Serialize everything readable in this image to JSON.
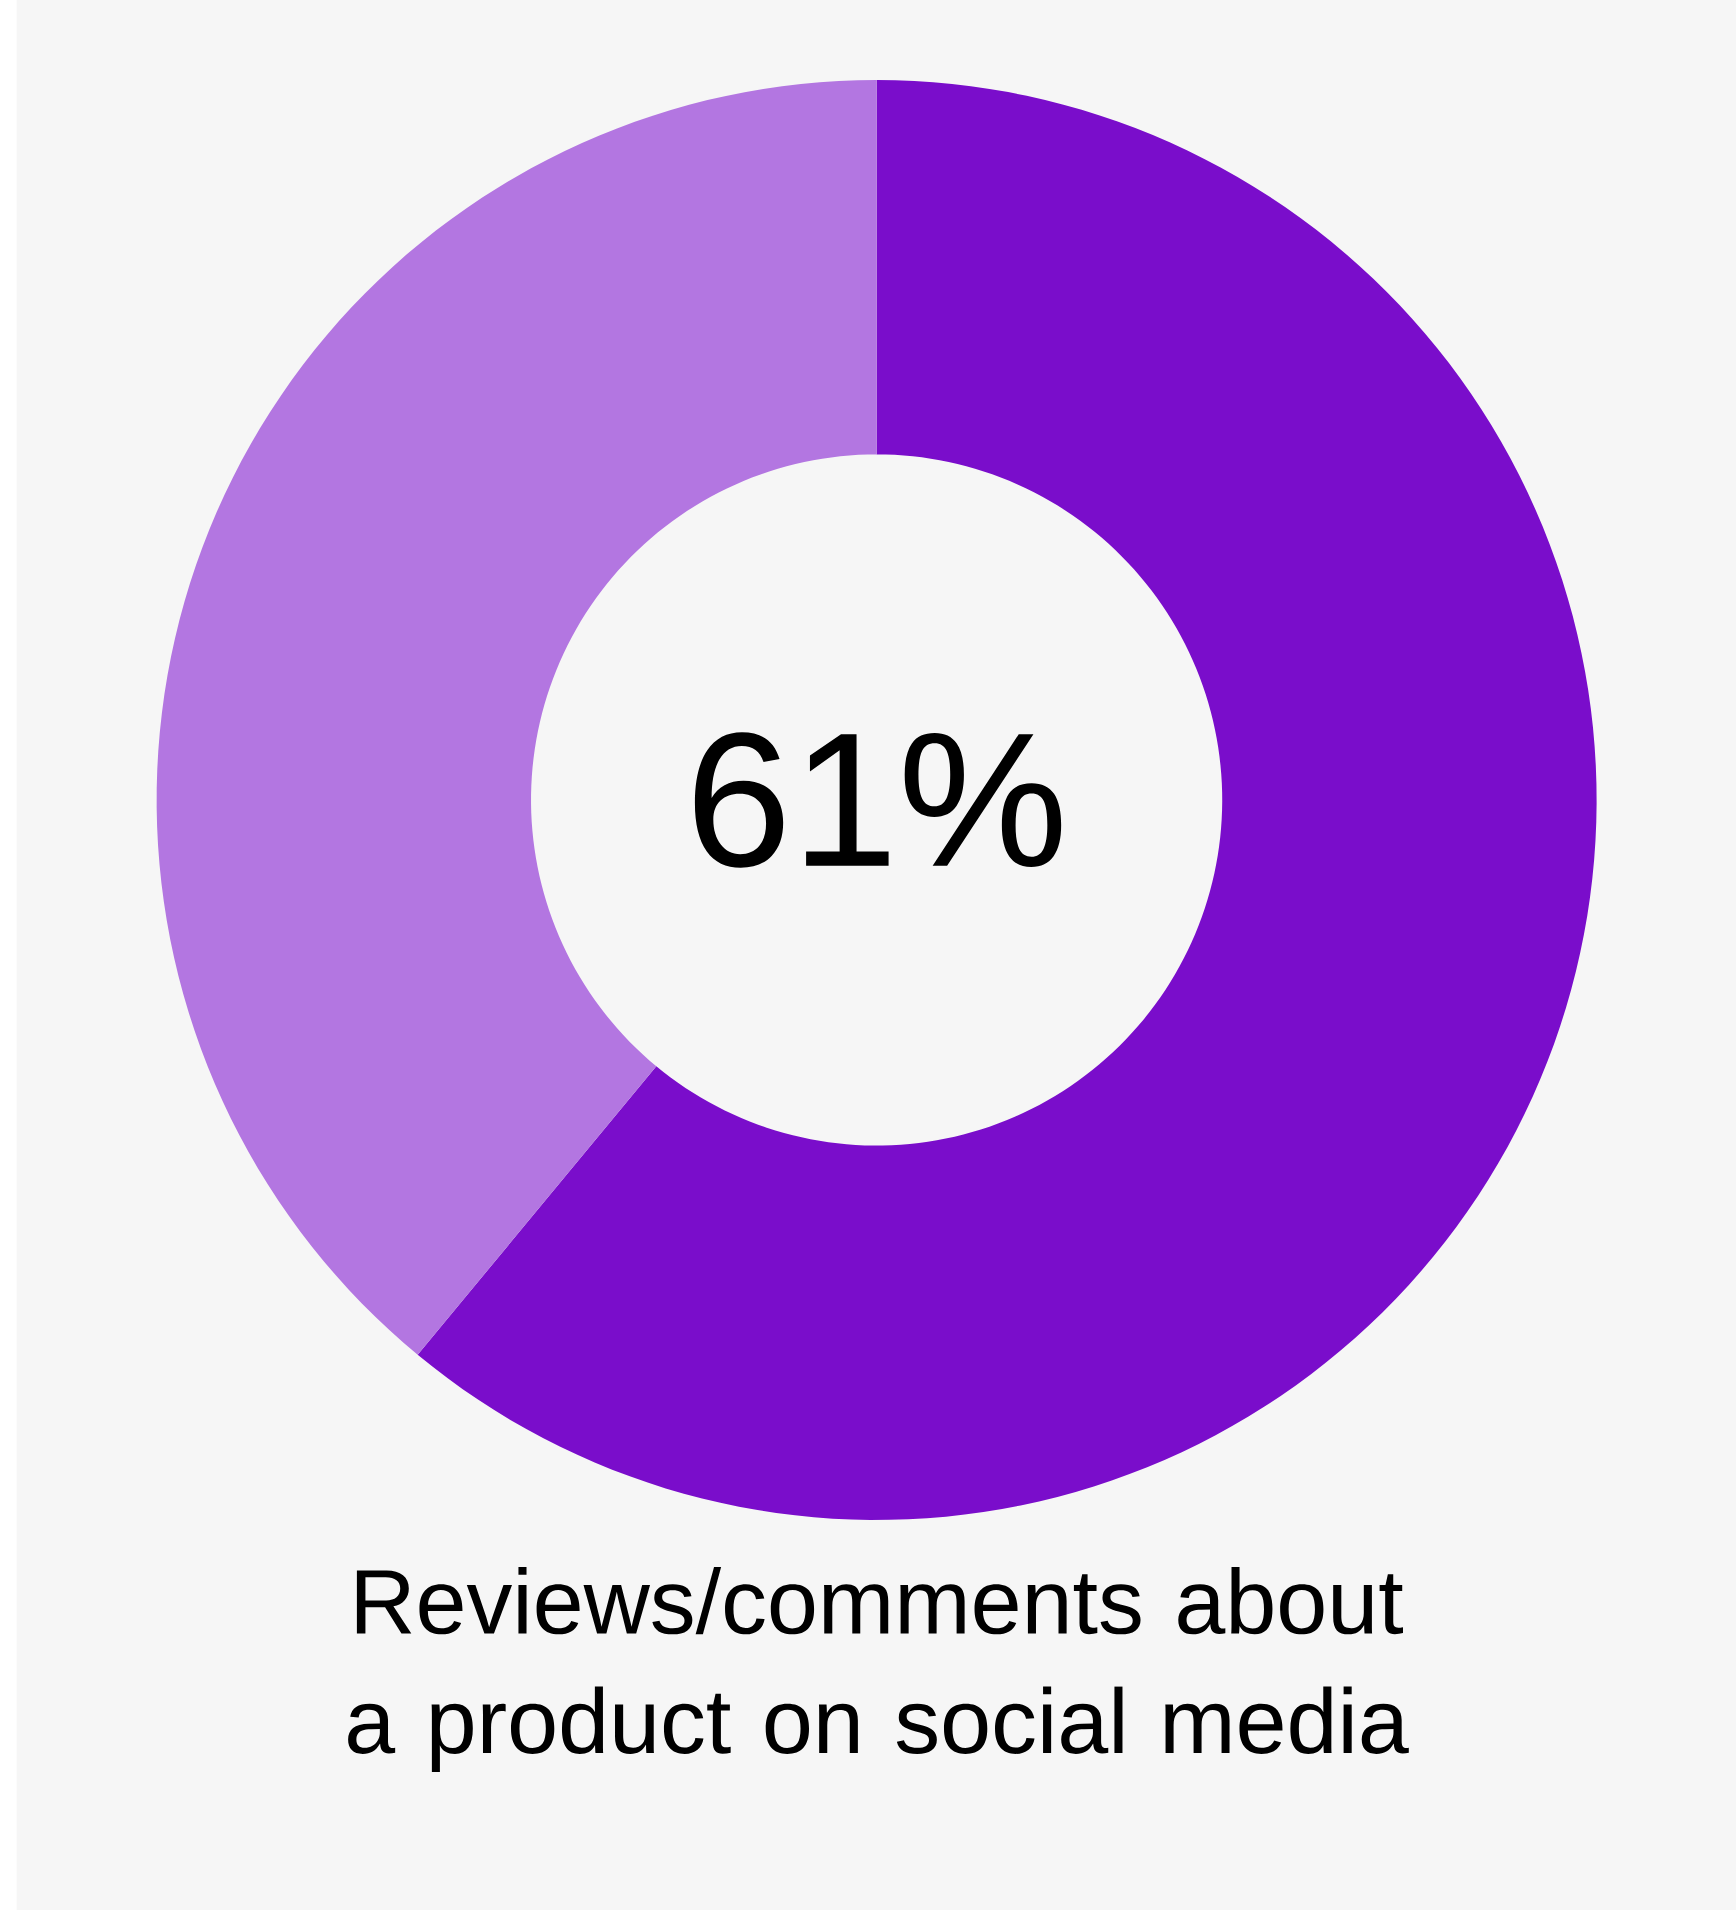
{
  "chart_data": {
    "type": "donut",
    "title": "Reviews/comments about a product on social media",
    "categories": [
      null,
      null
    ],
    "values": [
      61,
      39
    ],
    "colors": [
      "#7a0dcb",
      "#b376e1"
    ],
    "value_labels": [
      "61%",
      null
    ]
  }
}
